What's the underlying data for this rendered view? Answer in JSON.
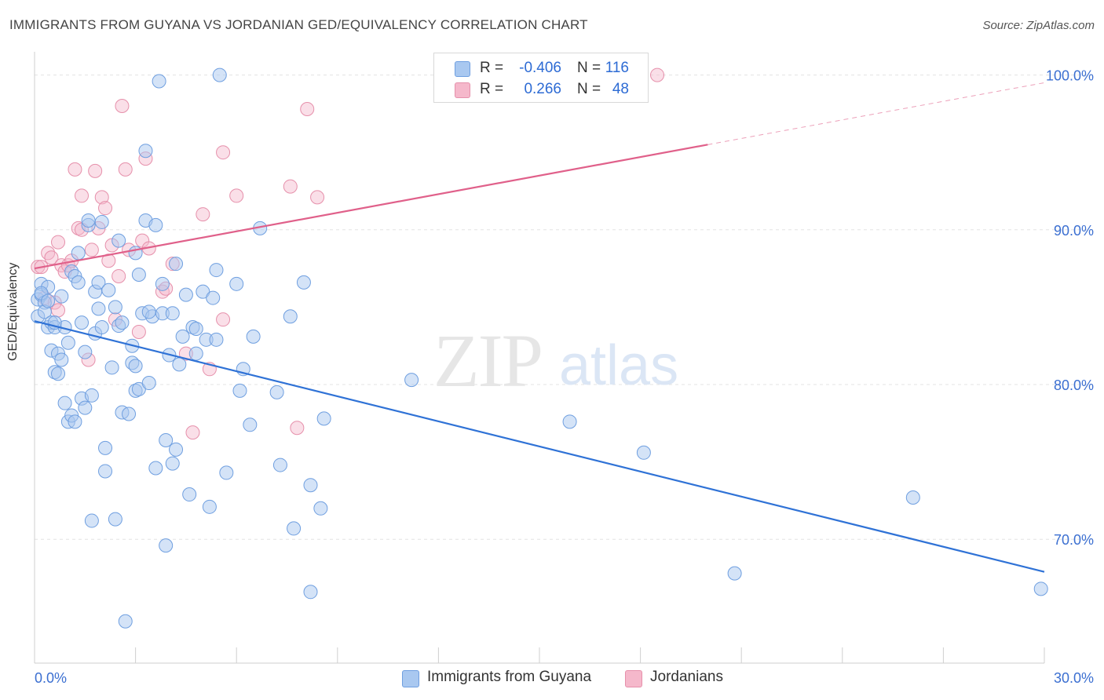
{
  "header": {
    "title": "IMMIGRANTS FROM GUYANA VS JORDANIAN GED/EQUIVALENCY CORRELATION CHART",
    "source": "Source: ZipAtlas.com"
  },
  "watermark": {
    "zip": "ZIP",
    "atlas": "atlas"
  },
  "legend": {
    "rows": [
      {
        "r_label": "R =",
        "r_value": "-0.406",
        "n_label": "N =",
        "n_value": "116",
        "color": "#a9c8f0"
      },
      {
        "r_label": "R =",
        "r_value": "0.266",
        "n_label": "N =",
        "n_value": "48",
        "color": "#f5b8cb"
      }
    ]
  },
  "bottom_legend": {
    "series1": "Immigrants from Guyana",
    "series2": "Jordanians"
  },
  "colors": {
    "blue_fill": "#a9c8f0",
    "blue_stroke": "#6f9fe0",
    "blue_line": "#2f72d6",
    "pink_fill": "#f5b8cb",
    "pink_stroke": "#e690ab",
    "pink_line": "#e0608a",
    "tick_text": "#3b6fd1",
    "grid": "#e3e3e3"
  },
  "chart_data": {
    "type": "scatter",
    "title": "IMMIGRANTS FROM GUYANA VS JORDANIAN GED/EQUIVALENCY CORRELATION CHART",
    "xlabel": "",
    "ylabel": "GED/Equivalency",
    "xlim": [
      0,
      30
    ],
    "ylim": [
      62,
      101.5
    ],
    "x_tick_labels": [
      "0.0%",
      "30.0%"
    ],
    "y_ticks": [
      70,
      80,
      90,
      100
    ],
    "y_tick_labels": [
      "70.0%",
      "80.0%",
      "90.0%",
      "100.0%"
    ],
    "grid": true,
    "legend_position": "top-center",
    "series": [
      {
        "name": "Immigrants from Guyana",
        "r": -0.406,
        "n": 116,
        "trend": {
          "x": [
            0,
            30
          ],
          "y": [
            84.1,
            67.9
          ]
        },
        "points": [
          [
            0.1,
            84.4
          ],
          [
            0.1,
            85.5
          ],
          [
            0.2,
            86.5
          ],
          [
            0.2,
            85.8
          ],
          [
            0.3,
            85.3
          ],
          [
            0.3,
            84.7
          ],
          [
            0.4,
            86.3
          ],
          [
            0.4,
            83.7
          ],
          [
            0.5,
            84.0
          ],
          [
            0.5,
            82.2
          ],
          [
            0.6,
            83.7
          ],
          [
            0.6,
            80.8
          ],
          [
            0.7,
            80.7
          ],
          [
            0.7,
            82.0
          ],
          [
            0.8,
            81.6
          ],
          [
            0.8,
            85.7
          ],
          [
            0.9,
            83.7
          ],
          [
            0.9,
            78.8
          ],
          [
            1.0,
            82.7
          ],
          [
            1.0,
            77.6
          ],
          [
            1.1,
            78.0
          ],
          [
            1.1,
            87.3
          ],
          [
            1.2,
            77.6
          ],
          [
            1.2,
            87.0
          ],
          [
            1.3,
            88.5
          ],
          [
            1.3,
            86.6
          ],
          [
            1.4,
            84.0
          ],
          [
            1.4,
            79.1
          ],
          [
            1.5,
            78.5
          ],
          [
            1.5,
            82.1
          ],
          [
            1.6,
            90.3
          ],
          [
            1.7,
            71.2
          ],
          [
            1.7,
            79.3
          ],
          [
            1.8,
            86.0
          ],
          [
            1.8,
            83.3
          ],
          [
            1.9,
            84.9
          ],
          [
            1.9,
            86.6
          ],
          [
            2.0,
            83.7
          ],
          [
            2.0,
            90.5
          ],
          [
            2.1,
            74.4
          ],
          [
            2.1,
            75.9
          ],
          [
            2.2,
            86.1
          ],
          [
            2.3,
            81.1
          ],
          [
            2.4,
            85.0
          ],
          [
            2.4,
            71.3
          ],
          [
            2.5,
            83.8
          ],
          [
            2.5,
            89.3
          ],
          [
            2.6,
            78.2
          ],
          [
            2.7,
            64.7
          ],
          [
            2.8,
            78.1
          ],
          [
            2.9,
            82.5
          ],
          [
            2.9,
            81.4
          ],
          [
            3.0,
            81.2
          ],
          [
            3.0,
            79.6
          ],
          [
            3.0,
            88.5
          ],
          [
            3.1,
            87.1
          ],
          [
            3.1,
            79.7
          ],
          [
            3.2,
            84.6
          ],
          [
            3.3,
            95.1
          ],
          [
            3.3,
            90.6
          ],
          [
            3.4,
            80.1
          ],
          [
            3.5,
            84.4
          ],
          [
            3.6,
            90.3
          ],
          [
            3.6,
            74.6
          ],
          [
            3.7,
            99.6
          ],
          [
            3.8,
            86.5
          ],
          [
            3.8,
            84.6
          ],
          [
            3.9,
            76.4
          ],
          [
            3.9,
            69.6
          ],
          [
            4.0,
            81.9
          ],
          [
            4.1,
            74.9
          ],
          [
            4.1,
            84.6
          ],
          [
            4.2,
            75.8
          ],
          [
            4.2,
            87.8
          ],
          [
            4.3,
            81.3
          ],
          [
            4.5,
            85.8
          ],
          [
            4.6,
            72.9
          ],
          [
            4.7,
            83.7
          ],
          [
            4.8,
            82.0
          ],
          [
            4.8,
            83.6
          ],
          [
            5.0,
            86.0
          ],
          [
            5.1,
            82.9
          ],
          [
            5.2,
            72.1
          ],
          [
            5.3,
            85.6
          ],
          [
            5.4,
            82.9
          ],
          [
            5.4,
            87.4
          ],
          [
            5.5,
            100.0
          ],
          [
            5.7,
            74.3
          ],
          [
            6.0,
            86.5
          ],
          [
            6.1,
            79.6
          ],
          [
            6.2,
            81.0
          ],
          [
            6.4,
            77.4
          ],
          [
            6.5,
            83.1
          ],
          [
            6.7,
            90.1
          ],
          [
            7.2,
            79.5
          ],
          [
            7.3,
            74.8
          ],
          [
            7.6,
            84.4
          ],
          [
            7.7,
            70.7
          ],
          [
            8.0,
            86.6
          ],
          [
            8.2,
            73.5
          ],
          [
            8.2,
            66.6
          ],
          [
            8.5,
            72.0
          ],
          [
            8.6,
            77.8
          ],
          [
            11.2,
            80.3
          ],
          [
            15.9,
            77.6
          ],
          [
            18.1,
            75.6
          ],
          [
            20.8,
            67.8
          ],
          [
            26.1,
            72.7
          ],
          [
            29.9,
            66.8
          ],
          [
            0.2,
            85.9
          ],
          [
            0.4,
            85.4
          ],
          [
            0.6,
            84.0
          ],
          [
            1.6,
            90.6
          ],
          [
            2.6,
            84.0
          ],
          [
            3.4,
            84.7
          ],
          [
            4.4,
            83.1
          ]
        ]
      },
      {
        "name": "Jordanians",
        "r": 0.266,
        "n": 48,
        "trend": {
          "x": [
            0,
            20
          ],
          "y": [
            87.5,
            95.5
          ]
        },
        "trend_dashed": {
          "x": [
            20,
            30
          ],
          "y": [
            95.5,
            99.5
          ]
        },
        "points": [
          [
            0.1,
            87.6
          ],
          [
            0.2,
            87.6
          ],
          [
            0.3,
            85.6
          ],
          [
            0.4,
            88.5
          ],
          [
            0.5,
            88.2
          ],
          [
            0.6,
            85.3
          ],
          [
            0.7,
            84.8
          ],
          [
            0.7,
            89.2
          ],
          [
            0.8,
            87.7
          ],
          [
            0.9,
            87.3
          ],
          [
            1.0,
            87.7
          ],
          [
            1.1,
            88.0
          ],
          [
            1.2,
            93.9
          ],
          [
            1.3,
            90.1
          ],
          [
            1.4,
            92.2
          ],
          [
            1.4,
            90.0
          ],
          [
            1.6,
            81.6
          ],
          [
            1.7,
            88.7
          ],
          [
            1.8,
            93.8
          ],
          [
            1.9,
            90.1
          ],
          [
            2.0,
            92.1
          ],
          [
            2.1,
            91.4
          ],
          [
            2.2,
            88.0
          ],
          [
            2.3,
            89.0
          ],
          [
            2.4,
            84.2
          ],
          [
            2.5,
            87.0
          ],
          [
            2.6,
            98.0
          ],
          [
            2.7,
            93.9
          ],
          [
            2.8,
            88.7
          ],
          [
            3.1,
            83.4
          ],
          [
            3.2,
            89.3
          ],
          [
            3.3,
            94.6
          ],
          [
            3.4,
            88.8
          ],
          [
            3.8,
            86.0
          ],
          [
            3.9,
            86.2
          ],
          [
            4.1,
            87.8
          ],
          [
            4.5,
            82.0
          ],
          [
            4.7,
            76.9
          ],
          [
            5.0,
            91.0
          ],
          [
            5.2,
            81.0
          ],
          [
            5.6,
            95.0
          ],
          [
            5.6,
            84.2
          ],
          [
            6.0,
            92.2
          ],
          [
            7.6,
            92.8
          ],
          [
            7.8,
            77.2
          ],
          [
            8.1,
            97.8
          ],
          [
            8.4,
            92.1
          ],
          [
            18.5,
            100.0
          ]
        ]
      }
    ]
  }
}
